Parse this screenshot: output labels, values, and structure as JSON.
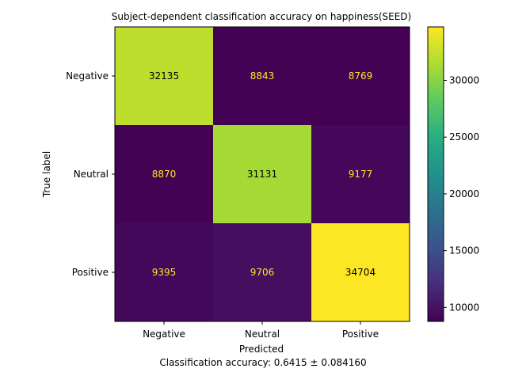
{
  "chart_data": {
    "type": "heatmap",
    "title": "Subject-dependent classification accuracy on happiness(SEED)",
    "xlabel": "Predicted",
    "ylabel": "True label",
    "caption": "Classification accuracy: 0.6415 ± 0.084160",
    "x_categories": [
      "Negative",
      "Neutral",
      "Positive"
    ],
    "y_categories": [
      "Negative",
      "Neutral",
      "Positive"
    ],
    "matrix": [
      [
        32135,
        8843,
        8769
      ],
      [
        8870,
        31131,
        9177
      ],
      [
        9395,
        9706,
        34704
      ]
    ],
    "colorbar": {
      "colormap": "viridis",
      "min": 8769,
      "max": 34704,
      "ticks": [
        10000,
        15000,
        20000,
        25000,
        30000
      ]
    },
    "text_color_dark_cell": "#fde725",
    "text_color_light_cell": "#000000"
  }
}
